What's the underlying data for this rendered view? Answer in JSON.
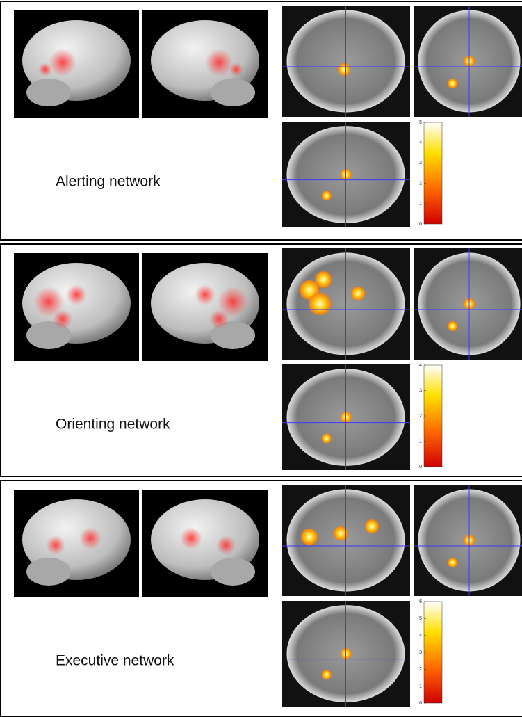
{
  "panels": [
    {
      "label": "Alerting network",
      "colorbar_ticks": [
        0,
        1,
        2,
        3,
        4,
        5
      ]
    },
    {
      "label": "Orienting network",
      "colorbar_ticks": [
        0,
        1,
        2,
        3,
        4
      ]
    },
    {
      "label": "Executive network",
      "colorbar_ticks": [
        0,
        1,
        2,
        3,
        4,
        5,
        6
      ]
    }
  ]
}
